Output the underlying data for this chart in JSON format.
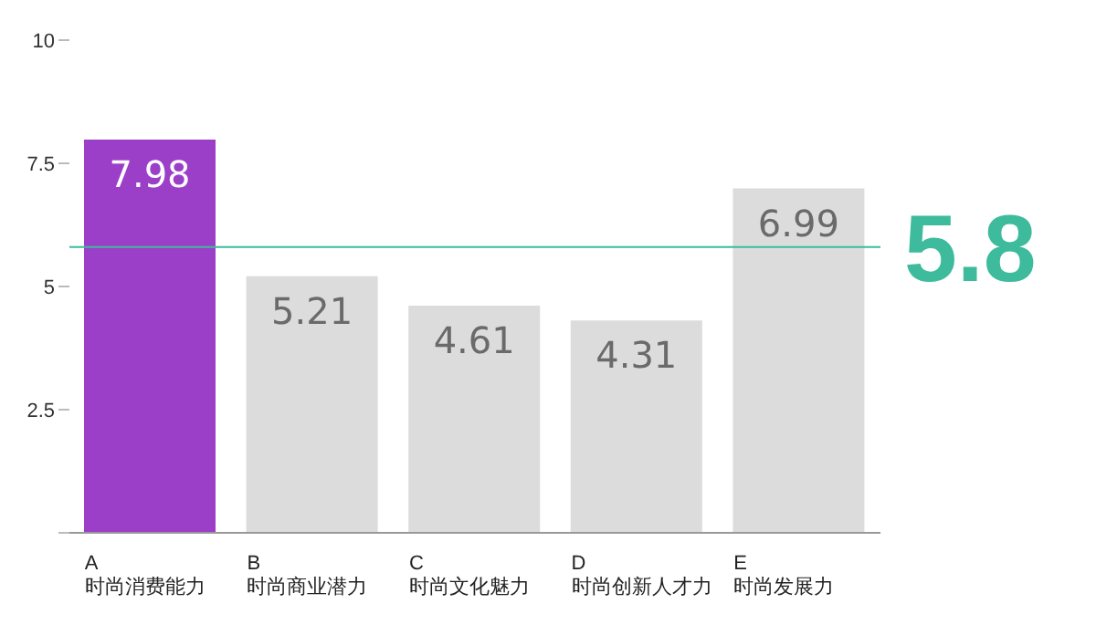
{
  "chart_data": {
    "type": "bar",
    "categories": [
      "A\n时尚消费能力",
      "B\n时尚商业潜力",
      "C\n时尚文化魅力",
      "D\n时尚创新人才力",
      "E\n时尚发展力"
    ],
    "values": [
      7.98,
      5.21,
      4.61,
      4.31,
      6.99
    ],
    "colors": [
      "#9b3fc8",
      "#dcdcdc",
      "#dcdcdc",
      "#dcdcdc",
      "#dcdcdc"
    ],
    "ylim": [
      0,
      10
    ],
    "yticks": [
      {
        "value": 0,
        "label": null
      },
      2.5,
      5,
      7.5,
      10
    ],
    "ref_lines": [
      {
        "axis": "y",
        "value": 5.8,
        "label": "5.8",
        "color": "#3dbb9c"
      }
    ],
    "data_labels": true
  }
}
